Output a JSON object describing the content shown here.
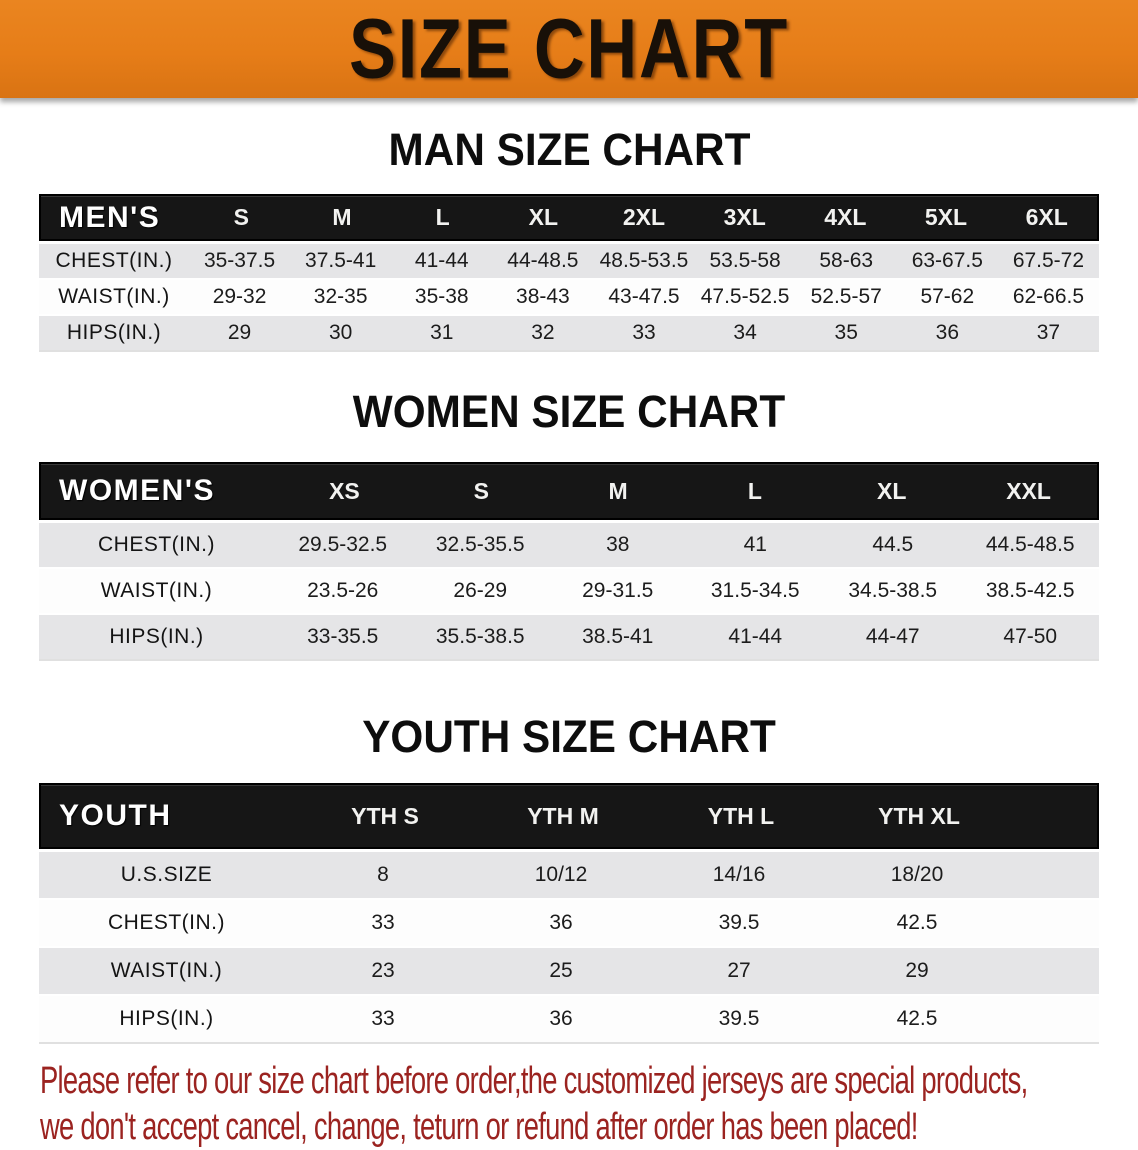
{
  "banner": {
    "title": "SIZE CHART",
    "background_color": "#e67d18",
    "text_color": "#181008"
  },
  "sections": {
    "men": {
      "heading": "MAN SIZE CHART",
      "table": {
        "label": "MEN'S",
        "columns": [
          "S",
          "M",
          "L",
          "XL",
          "2XL",
          "3XL",
          "4XL",
          "5XL",
          "6XL"
        ],
        "rows": [
          {
            "label": "CHEST(IN.)",
            "values": [
              "35-37.5",
              "37.5-41",
              "41-44",
              "44-48.5",
              "48.5-53.5",
              "53.5-58",
              "58-63",
              "63-67.5",
              "67.5-72"
            ]
          },
          {
            "label": "WAIST(IN.)",
            "values": [
              "29-32",
              "32-35",
              "35-38",
              "38-43",
              "43-47.5",
              "47.5-52.5",
              "52.5-57",
              "57-62",
              "62-66.5"
            ]
          },
          {
            "label": "HIPS(IN.)",
            "values": [
              "29",
              "30",
              "31",
              "32",
              "33",
              "34",
              "35",
              "36",
              "37"
            ]
          }
        ]
      }
    },
    "women": {
      "heading": "WOMEN SIZE CHART",
      "table": {
        "label": "WOMEN'S",
        "columns": [
          "XS",
          "S",
          "M",
          "L",
          "XL",
          "XXL"
        ],
        "rows": [
          {
            "label": "CHEST(IN.)",
            "values": [
              "29.5-32.5",
              "32.5-35.5",
              "38",
              "41",
              "44.5",
              "44.5-48.5"
            ]
          },
          {
            "label": "WAIST(IN.)",
            "values": [
              "23.5-26",
              "26-29",
              "29-31.5",
              "31.5-34.5",
              "34.5-38.5",
              "38.5-42.5"
            ]
          },
          {
            "label": "HIPS(IN.)",
            "values": [
              "33-35.5",
              "35.5-38.5",
              "38.5-41",
              "41-44",
              "44-47",
              "47-50"
            ]
          }
        ]
      }
    },
    "youth": {
      "heading": "YOUTH SIZE CHART",
      "table": {
        "label": "YOUTH",
        "columns": [
          "YTH S",
          "YTH M",
          "YTH L",
          "YTH XL"
        ],
        "rows": [
          {
            "label": "U.S.SIZE",
            "values": [
              "8",
              "10/12",
              "14/16",
              "18/20"
            ]
          },
          {
            "label": "CHEST(IN.)",
            "values": [
              "33",
              "36",
              "39.5",
              "42.5"
            ]
          },
          {
            "label": "WAIST(IN.)",
            "values": [
              "23",
              "25",
              "27",
              "29"
            ]
          },
          {
            "label": "HIPS(IN.)",
            "values": [
              "33",
              "36",
              "39.5",
              "42.5"
            ]
          }
        ]
      }
    }
  },
  "disclaimer": {
    "color": "#9b2320",
    "lines": [
      "Please refer to our size chart before order,the customized jerseys are special products,",
      "we don't accept cancel, change, teturn or refund after order has been placed!"
    ]
  }
}
